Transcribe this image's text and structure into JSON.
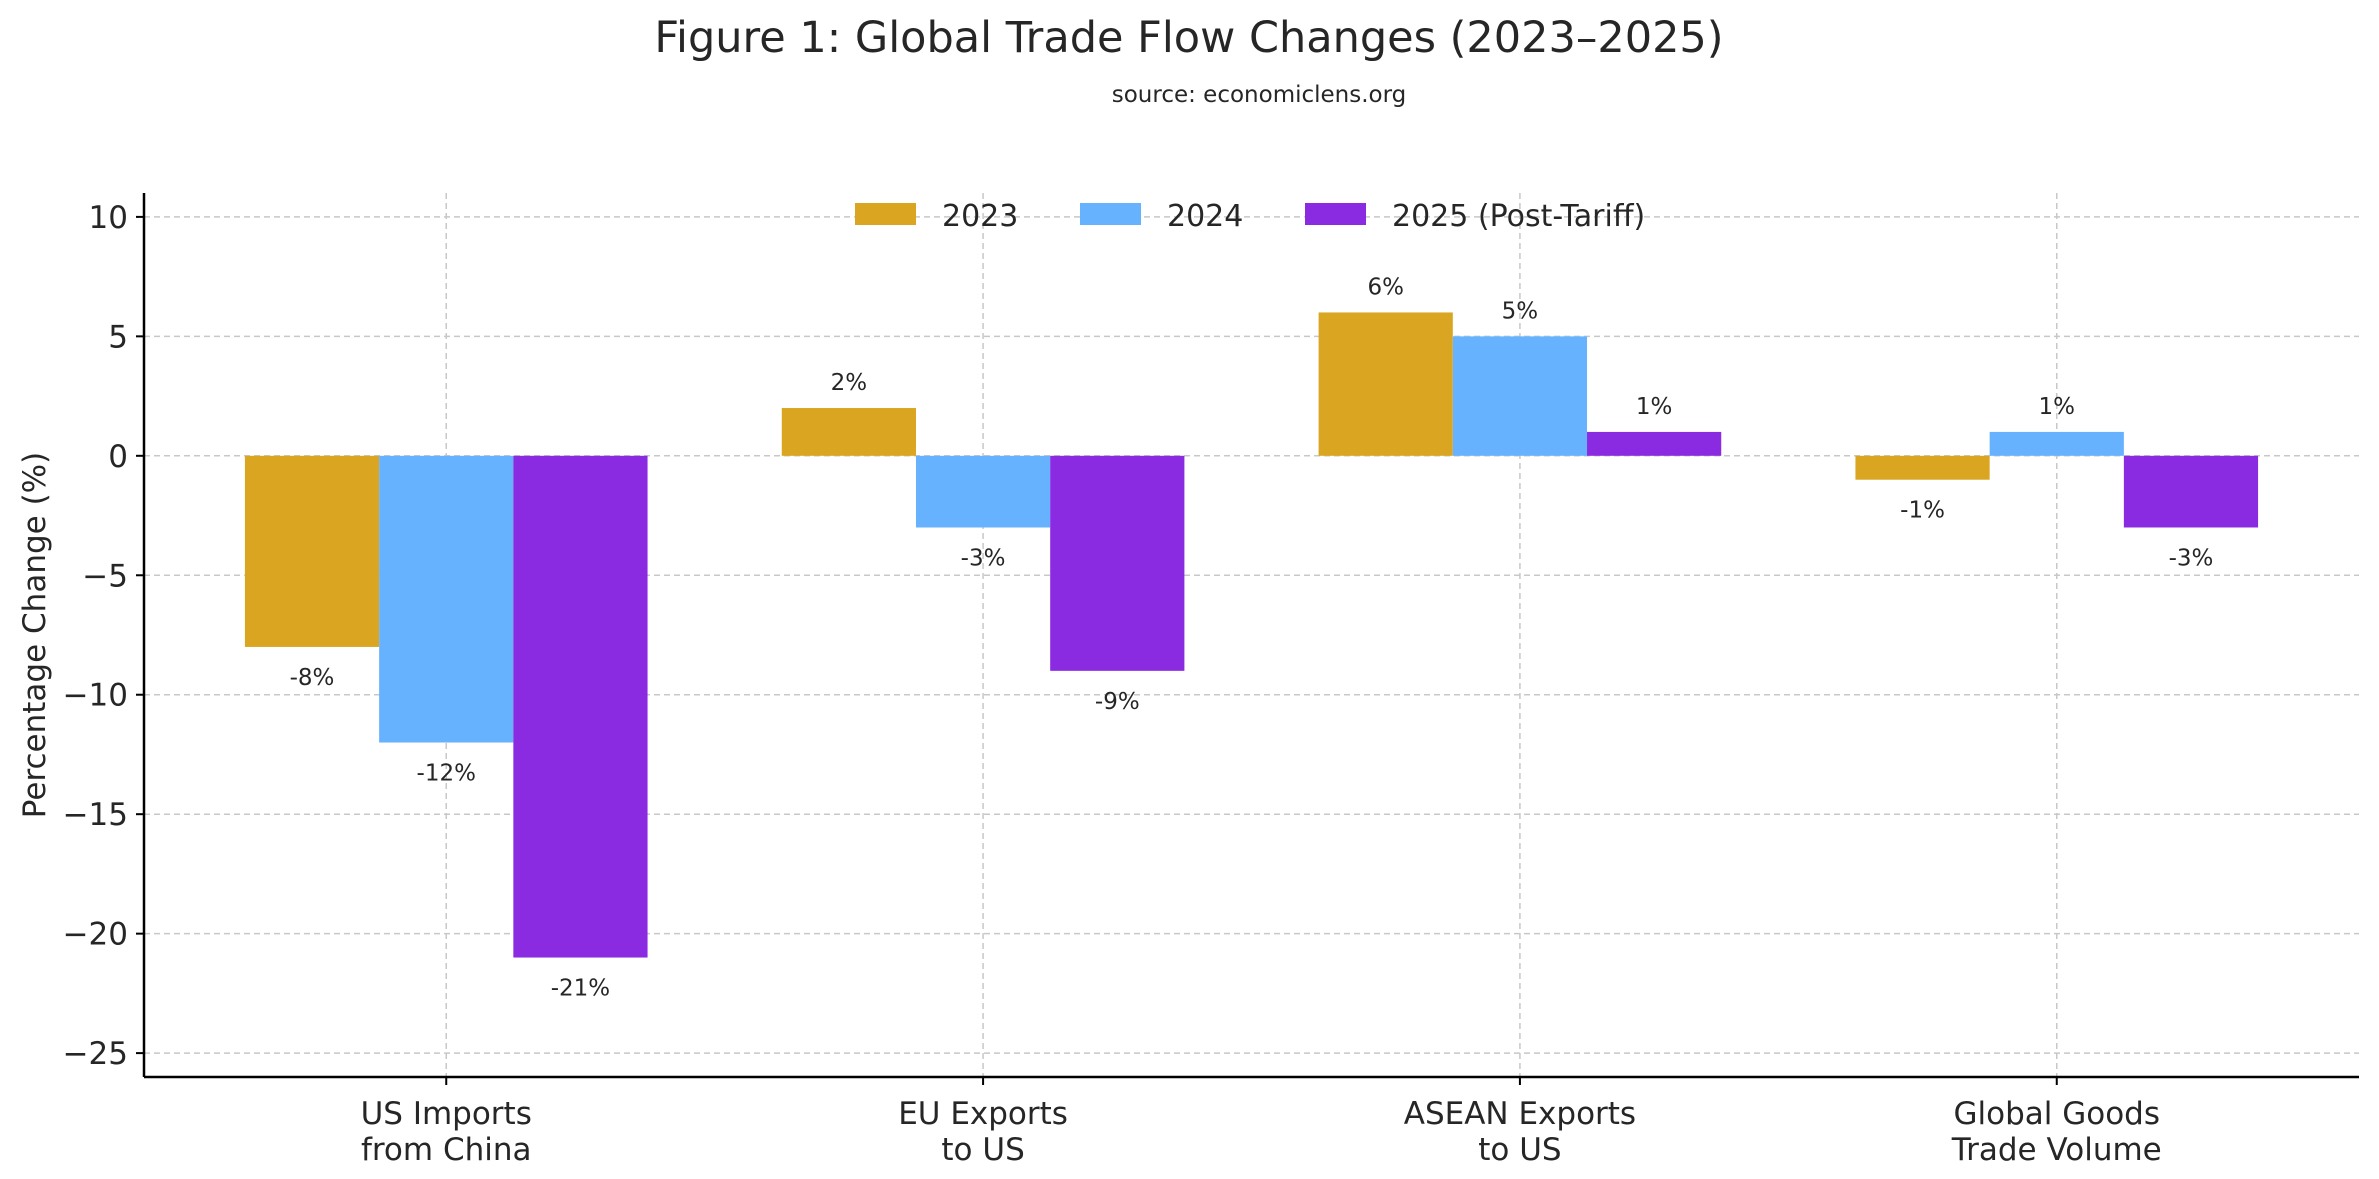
{
  "chart_data": {
    "type": "bar",
    "title": "Figure 1: Global Trade Flow Changes (2023–2025)",
    "subtitle": "source: economiclens.org",
    "xlabel": "",
    "ylabel": "Percentage Change (%)",
    "categories": [
      [
        "US Imports",
        "from China"
      ],
      [
        "EU Exports",
        "to US"
      ],
      [
        "ASEAN Exports",
        "to US"
      ],
      [
        "Global Goods",
        "Trade Volume"
      ]
    ],
    "series": [
      {
        "name": "2023",
        "color": "#DAA520",
        "values": [
          -8,
          2,
          6,
          -1
        ],
        "labels": [
          "-8%",
          "2%",
          "6%",
          "-1%"
        ]
      },
      {
        "name": "2024",
        "color": "#66B2FF",
        "values": [
          -12,
          -3,
          5,
          1
        ],
        "labels": [
          "-12%",
          "-3%",
          "5%",
          "1%"
        ]
      },
      {
        "name": "2025 (Post-Tariff)",
        "color": "#8A2BE2",
        "values": [
          -21,
          -9,
          1,
          -3
        ],
        "labels": [
          "-21%",
          "-9%",
          "1%",
          "-3%"
        ]
      }
    ],
    "ylim": [
      -26,
      11
    ],
    "yticks": [
      10,
      5,
      0,
      -5,
      -10,
      -15,
      -20,
      -25
    ],
    "ytick_labels": [
      "10",
      "5",
      "0",
      "−5",
      "−10",
      "−15",
      "−20",
      "−25"
    ],
    "grid": true,
    "legend_position": "top-center"
  }
}
